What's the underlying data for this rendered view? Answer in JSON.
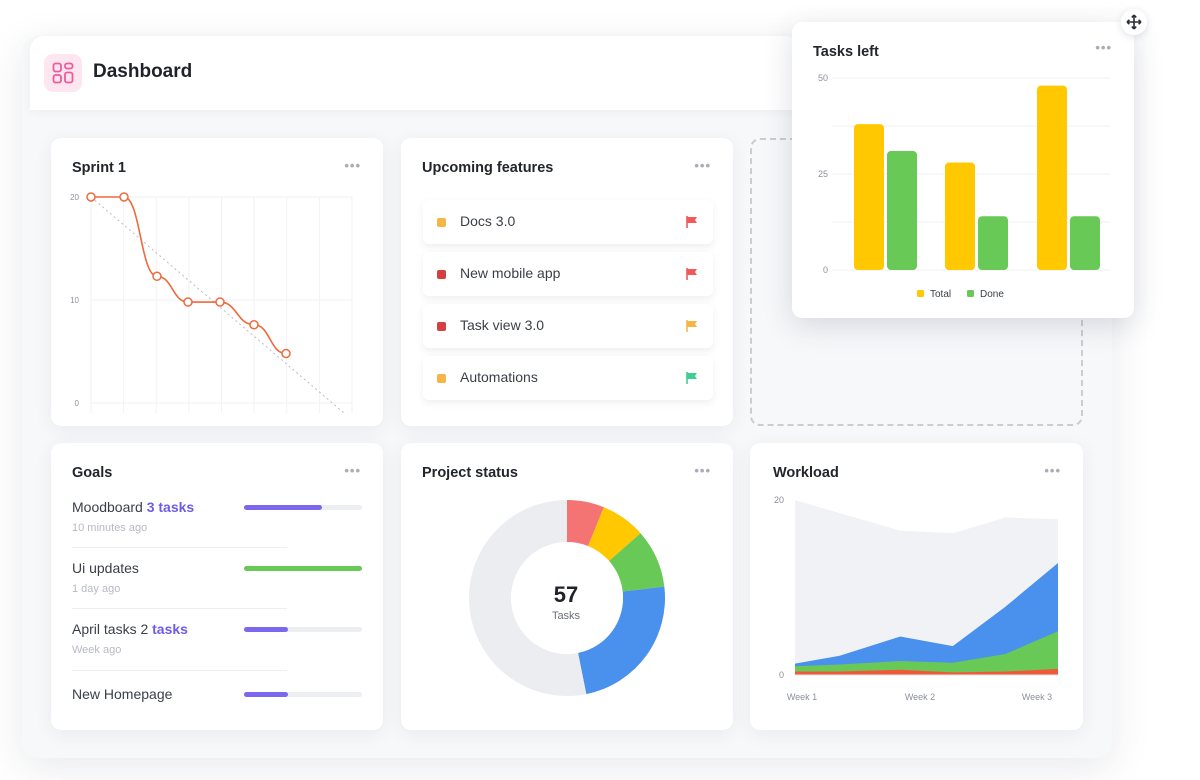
{
  "header": {
    "title": "Dashboard",
    "logo_icon": "dashboard-grid-icon"
  },
  "sprint": {
    "title": "Sprint 1",
    "more_label": "•••",
    "chart_data": {
      "type": "line",
      "ylim": [
        0,
        20
      ],
      "yticks": [
        "20",
        "10",
        "0"
      ],
      "series": [
        {
          "values": [
            20,
            20,
            12.3,
            9.8,
            9.8,
            7.6,
            4.8
          ]
        }
      ],
      "ideal_line": [
        20,
        0
      ],
      "grid": true
    }
  },
  "features": {
    "title": "Upcoming features",
    "more_label": "•••",
    "items": [
      {
        "label": "Docs 3.0",
        "color": "#f6b547",
        "flag_color": "#f25a5a"
      },
      {
        "label": "New mobile app",
        "color": "#d63f3f",
        "flag_color": "#f25a5a"
      },
      {
        "label": "Task view 3.0",
        "color": "#d63f3f",
        "flag_color": "#f6b547"
      },
      {
        "label": "Automations",
        "color": "#f6b547",
        "flag_color": "#3fcf94"
      }
    ]
  },
  "tasks_left": {
    "title": "Tasks left",
    "more_label": "•••",
    "move_icon": "move-arrows-icon",
    "chart_data": {
      "type": "bar",
      "ylim": [
        0,
        50
      ],
      "yticks": [
        "50",
        "25",
        "0"
      ],
      "series": [
        {
          "name": "Total",
          "color": "#ffc800",
          "values": [
            38,
            28,
            48
          ]
        },
        {
          "name": "Done",
          "color": "#68c957",
          "values": [
            31,
            14,
            14
          ]
        }
      ],
      "legend_position": "bottom"
    }
  },
  "goals": {
    "title": "Goals",
    "more_label": "•••",
    "items": [
      {
        "name": "Moodboard",
        "tasks": "3 tasks",
        "time": "10 minutes ago",
        "progress": 0.66,
        "color": "#7b68ee"
      },
      {
        "name": "Ui updates",
        "tasks": "",
        "time": "1 day ago",
        "progress": 1.0,
        "color": "#68c957"
      },
      {
        "name": "April tasks 2",
        "tasks": "tasks",
        "time": "Week ago",
        "progress": 0.37,
        "color": "#7b68ee"
      },
      {
        "name": "New Homepage",
        "tasks": "",
        "time": "",
        "progress": 0.37,
        "color": "#7b68ee"
      }
    ]
  },
  "project_status": {
    "title": "Project status",
    "more_label": "•••",
    "center_value": "57",
    "center_label": "Tasks",
    "chart_data": {
      "type": "pie",
      "total": 57,
      "slices": [
        {
          "value": 3.5,
          "color": "#f47373"
        },
        {
          "value": 4.2,
          "color": "#ffc800"
        },
        {
          "value": 5.5,
          "color": "#68c957"
        },
        {
          "value": 13.5,
          "color": "#4a90ed"
        },
        {
          "value": 30.3,
          "color": "#ebedf1"
        }
      ]
    }
  },
  "workload": {
    "title": "Workload",
    "more_label": "•••",
    "chart_data": {
      "type": "area",
      "ylim": [
        0,
        20
      ],
      "yticks": [
        "20",
        "0"
      ],
      "categories": [
        "Week 1",
        "Week 2",
        "Week 3"
      ],
      "x": [
        0,
        0.17,
        0.4,
        0.6,
        0.8,
        1.0
      ],
      "series": [
        {
          "color": "#f1f2f5",
          "values": [
            20,
            18.5,
            16.5,
            16.2,
            18,
            17.8
          ]
        },
        {
          "color": "#4a90ed",
          "values": [
            1.3,
            2.2,
            4.4,
            3.3,
            7.8,
            12.8
          ]
        },
        {
          "color": "#68c957",
          "values": [
            1.0,
            1.2,
            1.6,
            1.4,
            2.4,
            5.0
          ]
        },
        {
          "color": "#f05a3c",
          "values": [
            0.4,
            0.4,
            0.6,
            0.3,
            0.4,
            0.7
          ]
        }
      ]
    }
  }
}
